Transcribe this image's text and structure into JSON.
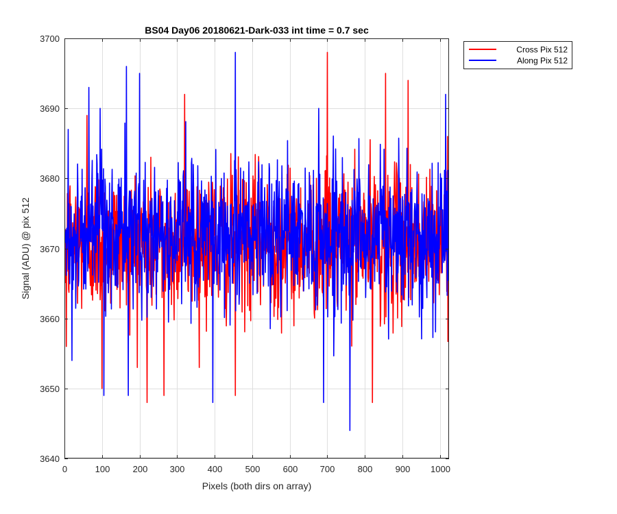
{
  "chart_data": {
    "type": "line",
    "title": "BS04 Day06 20180621-Dark-033 int time = 0.7 sec",
    "xlabel": "Pixels (both dirs on array)",
    "ylabel": "Signal (ADU) @ pix 512",
    "xlim": [
      0,
      1024
    ],
    "ylim": [
      3640,
      3700
    ],
    "xticks": [
      0,
      100,
      200,
      300,
      400,
      500,
      600,
      700,
      800,
      900,
      1000
    ],
    "yticks": [
      3640,
      3650,
      3660,
      3670,
      3680,
      3690,
      3700
    ],
    "xtick_labels": [
      "0",
      "100",
      "200",
      "300",
      "400",
      "500",
      "600",
      "700",
      "800",
      "900",
      "1000"
    ],
    "ytick_labels": [
      "3640",
      "3650",
      "3660",
      "3670",
      "3680",
      "3690",
      "3700"
    ],
    "grid": true,
    "legend_position": "outside-top-right",
    "series": [
      {
        "name": "Cross Pix 512",
        "color": "#ff0000",
        "mean": 3671,
        "x_range": [
          0,
          1024
        ],
        "notable_points": [
          [
            5,
            3656
          ],
          [
            60,
            3689
          ],
          [
            100,
            3650
          ],
          [
            220,
            3648
          ],
          [
            265,
            3649
          ],
          [
            320,
            3692
          ],
          [
            455,
            3649
          ],
          [
            700,
            3698
          ],
          [
            820,
            3648
          ],
          [
            855,
            3695
          ],
          [
            915,
            3694
          ],
          [
            1020,
            3686
          ]
        ]
      },
      {
        "name": "Along Pix 512",
        "color": "#0000ff",
        "mean": 3672,
        "x_range": [
          0,
          1024
        ],
        "notable_points": [
          [
            10,
            3687
          ],
          [
            20,
            3654
          ],
          [
            65,
            3693
          ],
          [
            95,
            3690
          ],
          [
            105,
            3649
          ],
          [
            165,
            3696
          ],
          [
            170,
            3649
          ],
          [
            200,
            3695
          ],
          [
            395,
            3648
          ],
          [
            455,
            3698
          ],
          [
            690,
            3648
          ],
          [
            760,
            3644
          ],
          [
            1015,
            3692
          ]
        ]
      }
    ]
  }
}
